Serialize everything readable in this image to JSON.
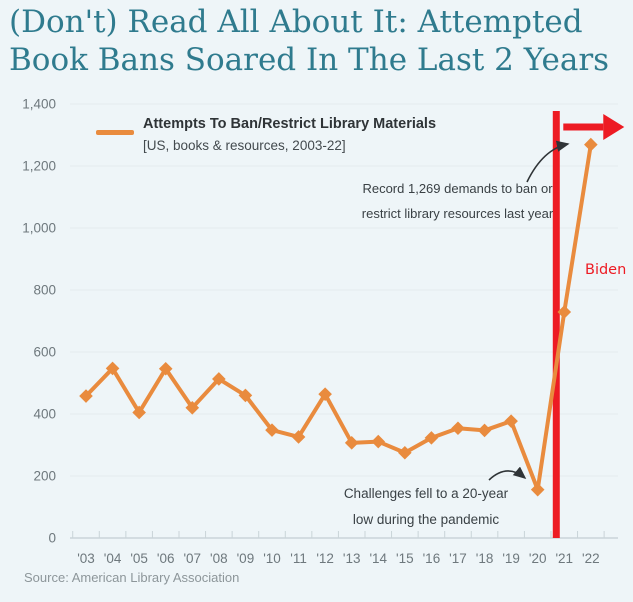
{
  "title": {
    "line1": "(Don't) Read All About It: Attempted",
    "line2": "Book Bans Soared In The Last 2 Years"
  },
  "legend": {
    "label": "Attempts To Ban/Restrict Library Materials",
    "sublabel": "[US, books & resources, 2003-22]"
  },
  "annotations": {
    "record": {
      "line1": "Record 1,269 demands to ban or",
      "line2": "restrict library resources last year"
    },
    "pandemic": {
      "line1": "Challenges fell to a 20-year",
      "line2": "low during the pandemic"
    },
    "biden": {
      "label": "Biden",
      "marks": "start of Biden presidency, vertical red line between '20 and '21 with red arrow pointing right"
    }
  },
  "source": "Source: American Library Association",
  "colors": {
    "background": "#eef5f8",
    "title_teal": "#2f7b8e",
    "line_orange": "#e98b3e",
    "annotation_red": "#ed1b23",
    "text_dark": "#2f3437",
    "axis_text": "#6e787d",
    "gridline": "#e4ebee",
    "axis_line": "#c3ced3",
    "tick": "#c9d4d8",
    "source_gray": "#8d969a"
  },
  "chart_data": {
    "type": "line",
    "title": "(Don't) Read All About It: Attempted Book Bans Soared In The Last 2 Years",
    "categories": [
      "'03",
      "'04",
      "'05",
      "'06",
      "'07",
      "'08",
      "'09",
      "'10",
      "'11",
      "'12",
      "'13",
      "'14",
      "'15",
      "'16",
      "'17",
      "'18",
      "'19",
      "'20",
      "'21",
      "'22"
    ],
    "series": [
      {
        "name": "Attempts To Ban/Restrict Library Materials",
        "values": [
          458,
          547,
          405,
          546,
          420,
          513,
          460,
          348,
          326,
          464,
          307,
          311,
          275,
          323,
          354,
          347,
          377,
          156,
          729,
          1269
        ],
        "color": "#e98b3e",
        "marker": "diamond"
      }
    ],
    "xlabel": "",
    "ylabel": "",
    "ylim": [
      0,
      1400
    ],
    "y_ticks": [
      0,
      200,
      400,
      600,
      800,
      1000,
      1200,
      1400
    ],
    "y_tick_labels": [
      "0",
      "200",
      "400",
      "600",
      "800",
      "1,000",
      "1,200",
      "1,400"
    ],
    "grid": true,
    "legend_position": "top-left",
    "vline": {
      "between": [
        "'20",
        "'21"
      ],
      "label": "Biden",
      "color": "#ed1b23"
    },
    "callouts": [
      {
        "target_year": "'22",
        "target_value": 1269,
        "text": "Record 1,269 demands to ban or restrict library resources last year"
      },
      {
        "target_year": "'20",
        "target_value": 156,
        "text": "Challenges fell to a 20-year low during the pandemic"
      }
    ]
  }
}
